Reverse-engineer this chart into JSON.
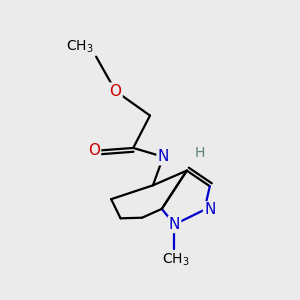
{
  "background_color": "#ebebeb",
  "bond_color": "#000000",
  "bond_width": 1.6,
  "atom_colors": {
    "C": "#000000",
    "N": "#0000cc",
    "O": "#cc0000",
    "H": "#5a8080"
  },
  "font_size": 11,
  "figsize": [
    3.0,
    3.0
  ],
  "dpi": 100
}
